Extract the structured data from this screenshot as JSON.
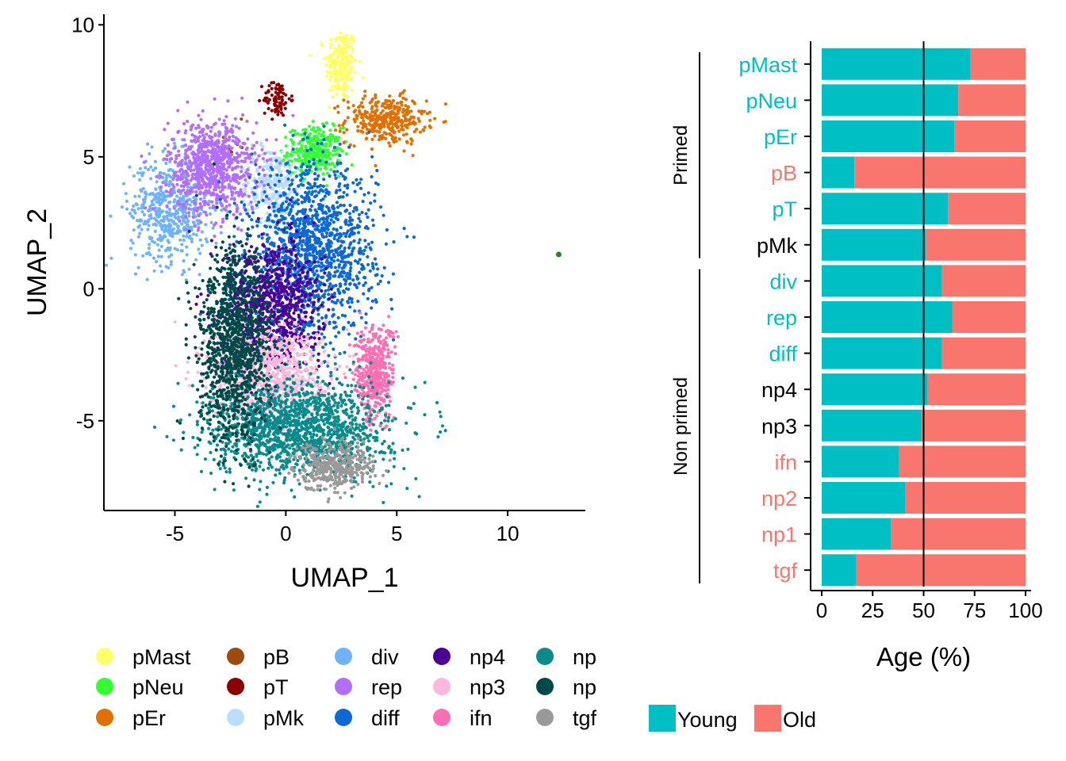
{
  "chart_data": [
    {
      "type": "scatter",
      "xlabel": "UMAP_1",
      "ylabel": "UMAP_2",
      "xlim": [
        -8.2,
        13.5
      ],
      "ylim": [
        -8.4,
        10.4
      ],
      "xticks": [
        -5,
        0,
        5,
        10
      ],
      "yticks": [
        -5,
        0,
        5,
        10
      ],
      "clusters": [
        {
          "name": "pMast",
          "color": "#FFFF66",
          "center": [
            2.5,
            8.5
          ],
          "spread": [
            0.35,
            0.7
          ],
          "n": 220
        },
        {
          "name": "pNeu",
          "color": "#33FF33",
          "center": [
            1.3,
            5.2
          ],
          "spread": [
            0.6,
            0.45
          ],
          "n": 320
        },
        {
          "name": "pEr",
          "color": "#E07000",
          "center": [
            4.5,
            6.4
          ],
          "spread": [
            0.9,
            0.45
          ],
          "n": 340
        },
        {
          "name": "pB",
          "color": "#9C4A0F",
          "center": [
            -2.5,
            5.4
          ],
          "spread": [
            0.3,
            0.3
          ],
          "n": 15
        },
        {
          "name": "pT",
          "color": "#8B0000",
          "center": [
            -0.4,
            7.2
          ],
          "spread": [
            0.3,
            0.35
          ],
          "n": 80
        },
        {
          "name": "pMk",
          "color": "#BBDDFF",
          "center": [
            -0.7,
            4.0
          ],
          "spread": [
            0.7,
            0.7
          ],
          "n": 260
        },
        {
          "name": "div",
          "color": "#6FB2FF",
          "center": [
            -5.2,
            3.0
          ],
          "spread": [
            0.9,
            1.0
          ],
          "n": 520
        },
        {
          "name": "rep",
          "color": "#B26FFF",
          "center": [
            -3.3,
            4.6
          ],
          "spread": [
            1.0,
            0.9
          ],
          "n": 820
        },
        {
          "name": "diff",
          "color": "#0B68D6",
          "center": [
            1.2,
            1.4
          ],
          "spread": [
            1.4,
            1.6
          ],
          "n": 1400
        },
        {
          "name": "np4",
          "color": "#4B0096",
          "center": [
            -0.6,
            -0.6
          ],
          "spread": [
            1.1,
            1.2
          ],
          "n": 820
        },
        {
          "name": "np3",
          "color": "#FFB7DB",
          "center": [
            -0.8,
            -3.2
          ],
          "spread": [
            1.3,
            0.9
          ],
          "n": 760
        },
        {
          "name": "ifn",
          "color": "#FF6FB2",
          "center": [
            4.0,
            -3.2
          ],
          "spread": [
            0.45,
            0.9
          ],
          "n": 420
        },
        {
          "name": "np",
          "color": "#0A8B8B",
          "center": [
            0.6,
            -5.3
          ],
          "spread": [
            2.0,
            0.9
          ],
          "n": 1500
        },
        {
          "name": "np",
          "color": "#004949",
          "center": [
            -2.3,
            -2.2
          ],
          "spread": [
            0.8,
            1.8
          ],
          "n": 1150
        },
        {
          "name": "tgf",
          "color": "#999999",
          "center": [
            2.2,
            -6.7
          ],
          "spread": [
            0.9,
            0.45
          ],
          "n": 380
        }
      ],
      "outlier": {
        "color": "#2E7D32",
        "point": [
          12.3,
          1.3
        ]
      }
    },
    {
      "type": "bar",
      "orientation": "horizontal",
      "stacked": true,
      "xlabel": "Age (%)",
      "xlim": [
        0,
        100
      ],
      "xticks": [
        0,
        25,
        50,
        75,
        100
      ],
      "reference_line": 50,
      "categories": [
        "pMast",
        "pNeu",
        "pEr",
        "pB",
        "pT",
        "pMk",
        "div",
        "rep",
        "diff",
        "np4",
        "np3",
        "ifn",
        "np2",
        "np1",
        "tgf"
      ],
      "label_colors": [
        "#00BFC4",
        "#00BFC4",
        "#00BFC4",
        "#F8766D",
        "#00BFC4",
        "#000000",
        "#00BFC4",
        "#00BFC4",
        "#00BFC4",
        "#000000",
        "#000000",
        "#F8766D",
        "#F8766D",
        "#F8766D",
        "#F8766D"
      ],
      "series": [
        {
          "name": "Young",
          "color": "#00BFC4",
          "values": [
            73,
            67,
            65,
            16,
            62,
            51,
            59,
            64,
            59,
            52,
            49,
            38,
            41,
            34,
            17
          ]
        },
        {
          "name": "Old",
          "color": "#F8766D",
          "values": [
            27,
            33,
            35,
            84,
            38,
            49,
            41,
            36,
            41,
            48,
            51,
            62,
            59,
            66,
            83
          ]
        }
      ],
      "groups": [
        {
          "label": "Primed",
          "from": "pMast",
          "to": "pMk"
        },
        {
          "label": "Non primed",
          "from": "div",
          "to": "tgf"
        }
      ]
    }
  ],
  "legend": {
    "clusters": [
      {
        "label": "pMast",
        "color": "#FFFF66"
      },
      {
        "label": "pNeu",
        "color": "#33FF33"
      },
      {
        "label": "pEr",
        "color": "#E07000"
      },
      {
        "label": "pB",
        "color": "#9C4A0F"
      },
      {
        "label": "pT",
        "color": "#8B0000"
      },
      {
        "label": "pMk",
        "color": "#BBDDFF"
      },
      {
        "label": "div",
        "color": "#6FB2FF"
      },
      {
        "label": "rep",
        "color": "#B26FFF"
      },
      {
        "label": "diff",
        "color": "#0B68D6"
      },
      {
        "label": "np4",
        "color": "#4B0096"
      },
      {
        "label": "np3",
        "color": "#FFB7DB"
      },
      {
        "label": "ifn",
        "color": "#FF6FB2"
      },
      {
        "label": "np",
        "color": "#0A8B8B"
      },
      {
        "label": "np",
        "color": "#004949"
      },
      {
        "label": "tgf",
        "color": "#999999"
      }
    ],
    "age": [
      {
        "label": "Young",
        "color": "#00BFC4"
      },
      {
        "label": "Old",
        "color": "#F8766D"
      }
    ]
  }
}
